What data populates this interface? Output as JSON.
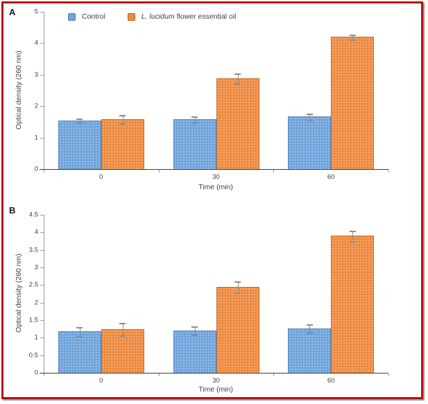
{
  "figure": {
    "border_color": "#b01414",
    "background": "#ffffff",
    "panel_labels": [
      "A",
      "B"
    ]
  },
  "legend": {
    "control_label": "Control",
    "oil_label_italic": "L. lucidum",
    "oil_label_rest": " flower essential oil"
  },
  "chart_data": [
    {
      "type": "bar",
      "panel_label": "A",
      "title": "",
      "xlabel": "Time (min)",
      "ylabel": "Optical density (260 nm)",
      "categories": [
        "0",
        "30",
        "60"
      ],
      "series": [
        {
          "name": "Control",
          "color": "#6fa3db",
          "values": [
            1.55,
            1.58,
            1.67
          ],
          "errors": [
            0.07,
            0.1,
            0.1
          ]
        },
        {
          "name": "L. lucidum flower essential oil",
          "name_italic_part": "L. lucidum",
          "name_regular_part": " flower essential oil",
          "color": "#ee8a40",
          "values": [
            1.58,
            2.88,
            4.2
          ],
          "errors": [
            0.13,
            0.15,
            0.08
          ]
        }
      ],
      "ylim": [
        0,
        5
      ],
      "ytick_step": 1,
      "grid": false,
      "legend_position": "top",
      "show_legend": true
    },
    {
      "type": "bar",
      "panel_label": "B",
      "title": "",
      "xlabel": "Time (min)",
      "ylabel": "Optical density (260 nm)",
      "categories": [
        "0",
        "30",
        "60"
      ],
      "series": [
        {
          "name": "Control",
          "color": "#6fa3db",
          "values": [
            1.18,
            1.2,
            1.26
          ],
          "errors": [
            0.13,
            0.12,
            0.12
          ]
        },
        {
          "name": "L. lucidum flower essential oil",
          "name_italic_part": "L. lucidum",
          "name_regular_part": " flower essential oil",
          "color": "#ee8a40",
          "values": [
            1.24,
            2.45,
            3.9
          ],
          "errors": [
            0.18,
            0.15,
            0.14
          ]
        }
      ],
      "ylim": [
        0,
        4.5
      ],
      "ytick_step": 0.5,
      "grid": false,
      "legend_position": "none",
      "show_legend": false
    }
  ]
}
